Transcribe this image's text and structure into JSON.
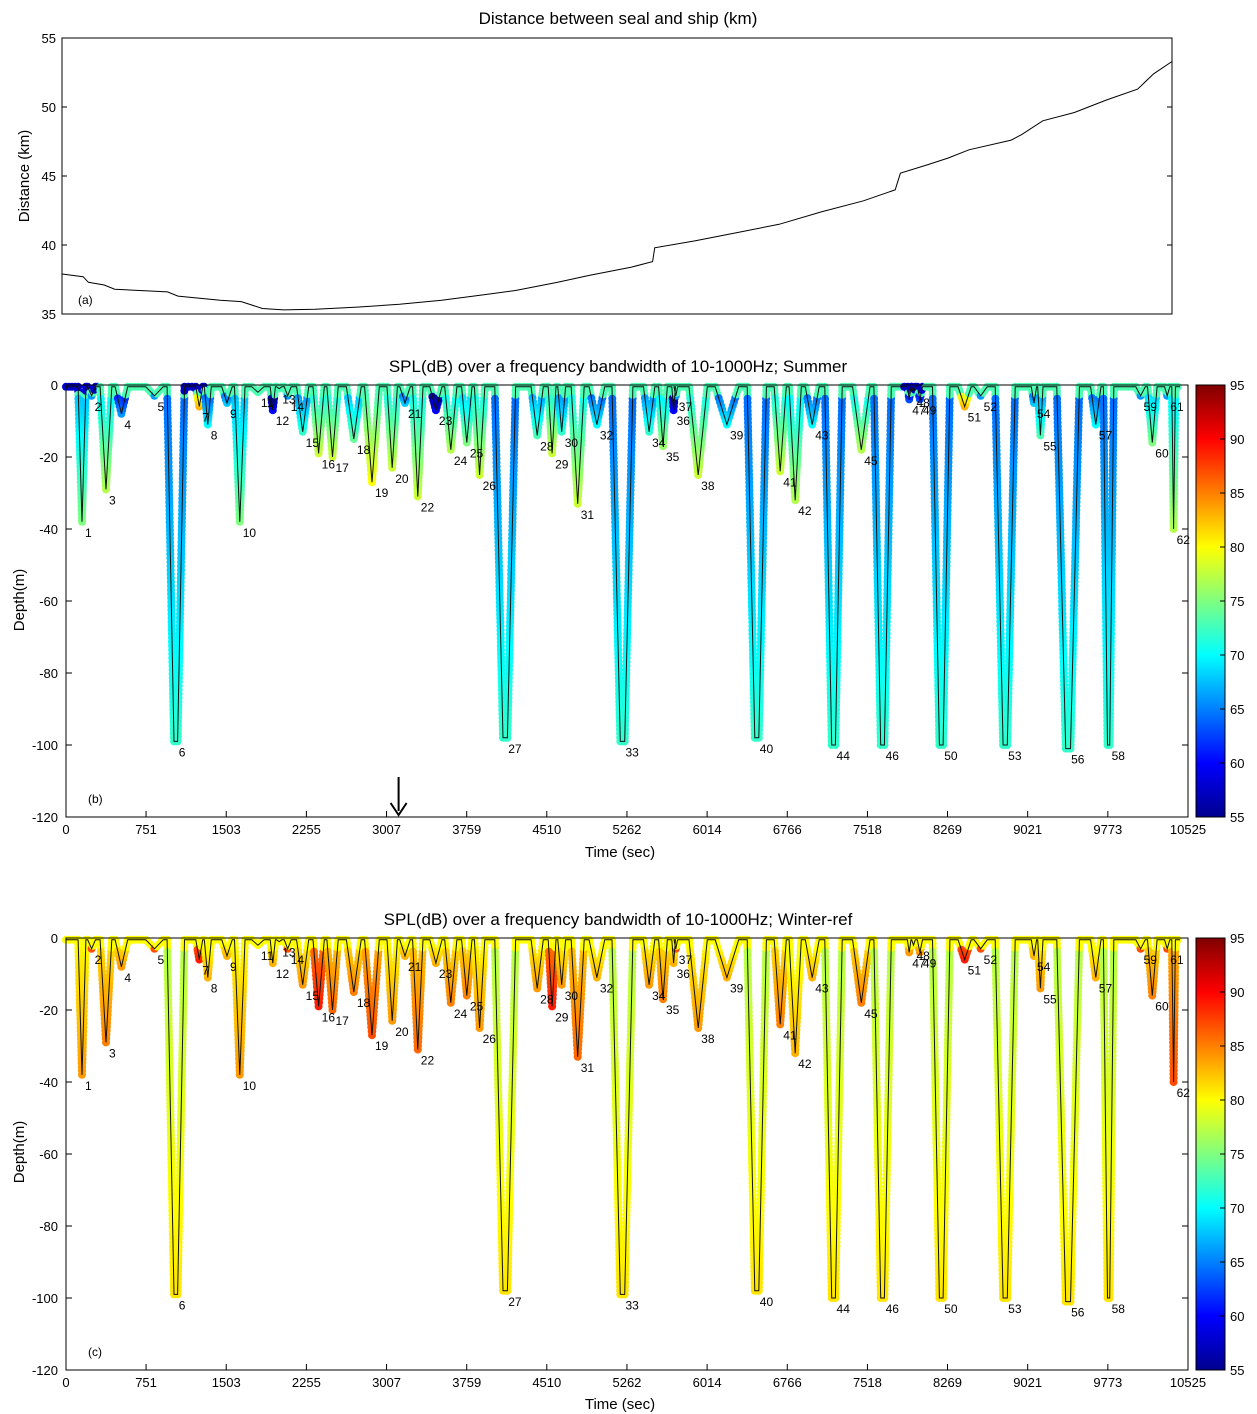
{
  "chart_data": [
    {
      "panel": "(a)",
      "type": "line",
      "title": "Distance between seal and ship (km)",
      "ylabel": "Distance (km)",
      "xlabel": "",
      "ylim": [
        35,
        55
      ],
      "xlim": [
        0,
        10525
      ],
      "yticks": [
        35,
        40,
        45,
        50,
        55
      ],
      "grid": false,
      "series": [
        {
          "x": [
            0,
            200,
            250,
            400,
            500,
            1000,
            1100,
            1500,
            1700,
            1900,
            2100,
            2400,
            2800,
            3200,
            3600,
            4000,
            4300,
            4700,
            5000,
            5400,
            5600,
            5620,
            6000,
            6400,
            6800,
            7200,
            7600,
            7900,
            7950,
            8200,
            8400,
            8600,
            9000,
            9100,
            9300,
            9600,
            9900,
            10200,
            10350,
            10525
          ],
          "values": [
            37.9,
            37.7,
            37.3,
            37.1,
            36.8,
            36.6,
            36.3,
            36.0,
            35.9,
            35.4,
            35.3,
            35.35,
            35.5,
            35.7,
            36.0,
            36.4,
            36.7,
            37.3,
            37.8,
            38.4,
            38.8,
            39.8,
            40.3,
            40.9,
            41.5,
            42.4,
            43.2,
            44.0,
            45.2,
            45.8,
            46.3,
            46.9,
            47.6,
            48.0,
            49.0,
            49.6,
            50.5,
            51.3,
            52.4,
            53.3
          ]
        }
      ],
      "tag": "(a)"
    },
    {
      "panel": "(b)",
      "type": "scatter",
      "title": "SPL(dB) over a frequency bandwidth of 10-1000Hz; Summer",
      "xlabel": "Time (sec)",
      "ylabel": "Depth(m)",
      "xlim": [
        0,
        10525
      ],
      "ylim": [
        -120,
        0
      ],
      "xticks": [
        "0",
        "751",
        "1503",
        "2255",
        "3007",
        "3759",
        "4510",
        "5262",
        "6014",
        "6766",
        "7518",
        "8269",
        "9021",
        "9773",
        "10525"
      ],
      "yticks": [
        0,
        -20,
        -40,
        -60,
        -80,
        -100,
        -120
      ],
      "colorbar": {
        "min": 55,
        "max": 95,
        "ticks": [
          55,
          60,
          65,
          70,
          75,
          80,
          85,
          90,
          95
        ]
      },
      "arrow_x": 3120,
      "tag": "(b)"
    },
    {
      "panel": "(c)",
      "type": "scatter",
      "title": "SPL(dB) over a frequency bandwidth of 10-1000Hz; Winter-ref",
      "xlabel": "Time (sec)",
      "ylabel": "Depth(m)",
      "xlim": [
        0,
        10525
      ],
      "ylim": [
        -120,
        0
      ],
      "xticks": [
        "0",
        "751",
        "1503",
        "2255",
        "3007",
        "3759",
        "4510",
        "5262",
        "6014",
        "6766",
        "7518",
        "8269",
        "9021",
        "9773",
        "10525"
      ],
      "yticks": [
        0,
        -20,
        -40,
        -60,
        -80,
        -100,
        -120
      ],
      "colorbar": {
        "min": 55,
        "max": 95,
        "ticks": [
          55,
          60,
          65,
          70,
          75,
          80,
          85,
          90,
          95
        ]
      },
      "tag": "(c)"
    }
  ],
  "dives": [
    {
      "n": "1",
      "t": 150,
      "d": 38
    },
    {
      "n": "2",
      "t": 240,
      "d": 3
    },
    {
      "n": "3",
      "t": 375,
      "d": 29
    },
    {
      "n": "4",
      "t": 520,
      "d": 8
    },
    {
      "n": "5",
      "t": 830,
      "d": 3
    },
    {
      "n": "6",
      "t": 1030,
      "d": 99
    },
    {
      "n": "7",
      "t": 1250,
      "d": 6
    },
    {
      "n": "8",
      "t": 1330,
      "d": 11
    },
    {
      "n": "9",
      "t": 1510,
      "d": 5
    },
    {
      "n": "10",
      "t": 1630,
      "d": 38
    },
    {
      "n": "11",
      "t": 1800,
      "d": 2
    },
    {
      "n": "12",
      "t": 1940,
      "d": 7
    },
    {
      "n": "13",
      "t": 2000,
      "d": 1
    },
    {
      "n": "14",
      "t": 2080,
      "d": 3
    },
    {
      "n": "15",
      "t": 2220,
      "d": 13
    },
    {
      "n": "16",
      "t": 2370,
      "d": 19
    },
    {
      "n": "17",
      "t": 2500,
      "d": 20
    },
    {
      "n": "18",
      "t": 2700,
      "d": 15
    },
    {
      "n": "19",
      "t": 2870,
      "d": 27
    },
    {
      "n": "20",
      "t": 3060,
      "d": 23
    },
    {
      "n": "21",
      "t": 3180,
      "d": 5
    },
    {
      "n": "22",
      "t": 3300,
      "d": 31
    },
    {
      "n": "23",
      "t": 3470,
      "d": 7
    },
    {
      "n": "24",
      "t": 3610,
      "d": 18
    },
    {
      "n": "25",
      "t": 3760,
      "d": 16
    },
    {
      "n": "26",
      "t": 3880,
      "d": 25
    },
    {
      "n": "27",
      "t": 4120,
      "d": 98
    },
    {
      "n": "28",
      "t": 4420,
      "d": 14
    },
    {
      "n": "29",
      "t": 4560,
      "d": 19
    },
    {
      "n": "30",
      "t": 4650,
      "d": 13
    },
    {
      "n": "31",
      "t": 4800,
      "d": 33
    },
    {
      "n": "32",
      "t": 4980,
      "d": 11
    },
    {
      "n": "33",
      "t": 5220,
      "d": 99
    },
    {
      "n": "34",
      "t": 5470,
      "d": 13
    },
    {
      "n": "35",
      "t": 5600,
      "d": 17
    },
    {
      "n": "36",
      "t": 5700,
      "d": 7
    },
    {
      "n": "37",
      "t": 5720,
      "d": 3
    },
    {
      "n": "38",
      "t": 5930,
      "d": 25
    },
    {
      "n": "39",
      "t": 6200,
      "d": 11
    },
    {
      "n": "40",
      "t": 6480,
      "d": 98
    },
    {
      "n": "41",
      "t": 6700,
      "d": 24
    },
    {
      "n": "42",
      "t": 6840,
      "d": 32
    },
    {
      "n": "43",
      "t": 7000,
      "d": 11
    },
    {
      "n": "44",
      "t": 7200,
      "d": 100
    },
    {
      "n": "45",
      "t": 7460,
      "d": 18
    },
    {
      "n": "46",
      "t": 7660,
      "d": 100
    },
    {
      "n": "47",
      "t": 7910,
      "d": 4
    },
    {
      "n": "48",
      "t": 7950,
      "d": 2
    },
    {
      "n": "49",
      "t": 8010,
      "d": 4
    },
    {
      "n": "50",
      "t": 8210,
      "d": 100
    },
    {
      "n": "51",
      "t": 8430,
      "d": 6
    },
    {
      "n": "52",
      "t": 8580,
      "d": 3
    },
    {
      "n": "53",
      "t": 8810,
      "d": 100
    },
    {
      "n": "54",
      "t": 9080,
      "d": 5
    },
    {
      "n": "55",
      "t": 9140,
      "d": 14
    },
    {
      "n": "56",
      "t": 9400,
      "d": 101
    },
    {
      "n": "57",
      "t": 9660,
      "d": 11
    },
    {
      "n": "58",
      "t": 9780,
      "d": 100
    },
    {
      "n": "59",
      "t": 10080,
      "d": 3
    },
    {
      "n": "60",
      "t": 10190,
      "d": 16
    },
    {
      "n": "61",
      "t": 10330,
      "d": 3
    },
    {
      "n": "62",
      "t": 10390,
      "d": 40
    }
  ],
  "spl_summer": [
    {
      "d": 0,
      "v": 58
    },
    {
      "d": 1,
      "v": 62
    },
    {
      "d": 2,
      "v": 58
    },
    {
      "d": 3,
      "v": 66
    },
    {
      "d": 4,
      "v": 63
    },
    {
      "d": 5,
      "v": 68
    },
    {
      "d": 6,
      "v": 83
    },
    {
      "d": 7,
      "v": 60
    },
    {
      "d": 8,
      "v": 66
    },
    {
      "d": 9,
      "v": 69
    },
    {
      "d": 10,
      "v": 84
    },
    {
      "d": 11,
      "v": 70
    },
    {
      "d": 12,
      "v": 71
    },
    {
      "d": 13,
      "v": 72
    },
    {
      "d": 14,
      "v": 73
    },
    {
      "d": 15,
      "v": 74
    },
    {
      "d": 16,
      "v": 75
    },
    {
      "d": 17,
      "v": 76
    },
    {
      "d": 18,
      "v": 77
    },
    {
      "d": 19,
      "v": 78
    },
    {
      "d": 20,
      "v": 78
    },
    {
      "d": 21,
      "v": 78
    },
    {
      "d": 22,
      "v": 79
    },
    {
      "d": 23,
      "v": 78
    },
    {
      "d": 24,
      "v": 78
    },
    {
      "d": 25,
      "v": 78
    },
    {
      "d": 26,
      "v": 79
    },
    {
      "d": 27,
      "v": 80
    },
    {
      "d": 28,
      "v": 77
    },
    {
      "d": 29,
      "v": 77
    },
    {
      "d": 30,
      "v": 77
    },
    {
      "d": 31,
      "v": 78
    },
    {
      "d": 32,
      "v": 77
    },
    {
      "d": 33,
      "v": 78
    },
    {
      "d": 34,
      "v": 77
    },
    {
      "d": 35,
      "v": 77
    },
    {
      "d": 36,
      "v": 77
    },
    {
      "d": 37,
      "v": 78
    },
    {
      "d": 38,
      "v": 75
    },
    {
      "d": 39,
      "v": 75
    },
    {
      "d": 40,
      "v": 77
    },
    {
      "d": 41,
      "v": 75
    },
    {
      "d": 42,
      "v": 76
    },
    {
      "d": 43,
      "v": 76
    },
    {
      "d": 44,
      "v": 78
    },
    {
      "d": 45,
      "v": 75
    },
    {
      "d": 46,
      "v": 78
    },
    {
      "d": 47,
      "v": 73
    },
    {
      "d": 48,
      "v": 73
    },
    {
      "d": 49,
      "v": 73
    },
    {
      "d": 50,
      "v": 78
    },
    {
      "d": 51,
      "v": 72
    },
    {
      "d": 52,
      "v": 72
    },
    {
      "d": 53,
      "v": 78
    },
    {
      "d": 54,
      "v": 71
    },
    {
      "d": 55,
      "v": 72
    },
    {
      "d": 56,
      "v": 78
    },
    {
      "d": 57,
      "v": 71
    },
    {
      "d": 58,
      "v": 78
    },
    {
      "d": 59,
      "v": 70
    },
    {
      "d": 60,
      "v": 70
    },
    {
      "d": 61,
      "v": 70
    },
    {
      "d": 62,
      "v": 72
    }
  ],
  "spl_winter": [
    {
      "d": 0,
      "v": 82
    },
    {
      "d": 1,
      "v": 87
    },
    {
      "d": 2,
      "v": 83
    },
    {
      "d": 3,
      "v": 87
    },
    {
      "d": 4,
      "v": 84
    },
    {
      "d": 5,
      "v": 83
    },
    {
      "d": 6,
      "v": 89
    },
    {
      "d": 7,
      "v": 83
    },
    {
      "d": 8,
      "v": 84
    },
    {
      "d": 9,
      "v": 83
    },
    {
      "d": 10,
      "v": 88
    },
    {
      "d": 11,
      "v": 83
    },
    {
      "d": 12,
      "v": 84
    },
    {
      "d": 13,
      "v": 84
    },
    {
      "d": 14,
      "v": 84
    },
    {
      "d": 15,
      "v": 85
    },
    {
      "d": 16,
      "v": 85
    },
    {
      "d": 17,
      "v": 85
    },
    {
      "d": 18,
      "v": 85
    },
    {
      "d": 19,
      "v": 89
    },
    {
      "d": 20,
      "v": 86
    },
    {
      "d": 21,
      "v": 84
    },
    {
      "d": 22,
      "v": 88
    },
    {
      "d": 23,
      "v": 84
    },
    {
      "d": 24,
      "v": 85
    },
    {
      "d": 25,
      "v": 84
    },
    {
      "d": 26,
      "v": 85
    },
    {
      "d": 27,
      "v": 87
    },
    {
      "d": 28,
      "v": 85
    },
    {
      "d": 29,
      "v": 85
    },
    {
      "d": 30,
      "v": 84
    },
    {
      "d": 31,
      "v": 86
    },
    {
      "d": 32,
      "v": 83
    },
    {
      "d": 33,
      "v": 86
    },
    {
      "d": 34,
      "v": 83
    },
    {
      "d": 35,
      "v": 83
    },
    {
      "d": 36,
      "v": 81
    },
    {
      "d": 37,
      "v": 81
    },
    {
      "d": 38,
      "v": 84
    },
    {
      "d": 39,
      "v": 82
    },
    {
      "d": 40,
      "v": 87
    },
    {
      "d": 41,
      "v": 85
    },
    {
      "d": 42,
      "v": 86
    },
    {
      "d": 43,
      "v": 82
    },
    {
      "d": 44,
      "v": 85
    },
    {
      "d": 45,
      "v": 83
    },
    {
      "d": 46,
      "v": 84
    },
    {
      "d": 47,
      "v": 76
    },
    {
      "d": 48,
      "v": 76
    },
    {
      "d": 49,
      "v": 76
    },
    {
      "d": 50,
      "v": 84
    },
    {
      "d": 51,
      "v": 76
    },
    {
      "d": 52,
      "v": 76
    },
    {
      "d": 53,
      "v": 83
    },
    {
      "d": 54,
      "v": 77
    },
    {
      "d": 55,
      "v": 80
    },
    {
      "d": 56,
      "v": 80
    },
    {
      "d": 57,
      "v": 77
    },
    {
      "d": 58,
      "v": 82
    },
    {
      "d": 59,
      "v": 76
    },
    {
      "d": 60,
      "v": 78
    },
    {
      "d": 61,
      "v": 76
    },
    {
      "d": 62,
      "v": 81
    }
  ]
}
